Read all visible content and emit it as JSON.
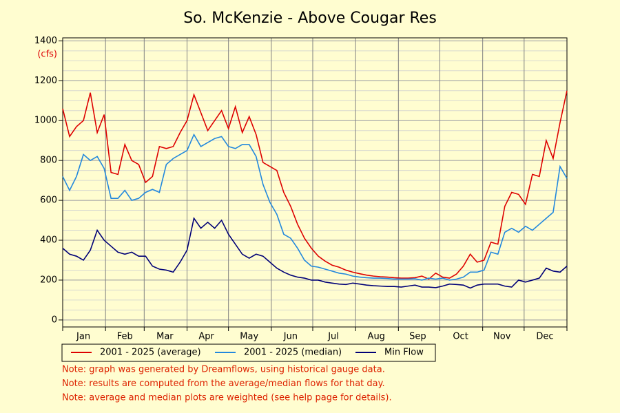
{
  "chart_data": {
    "type": "line",
    "title": "So. McKenzie - Above Cougar Res",
    "y_label": "(cfs)",
    "x": [
      1,
      6,
      11,
      16,
      21,
      26,
      31,
      36,
      41,
      46,
      51,
      56,
      61,
      66,
      71,
      76,
      81,
      86,
      91,
      96,
      101,
      106,
      111,
      116,
      121,
      126,
      131,
      136,
      141,
      146,
      151,
      156,
      161,
      166,
      171,
      176,
      181,
      186,
      191,
      196,
      201,
      206,
      211,
      216,
      221,
      226,
      231,
      236,
      241,
      246,
      251,
      256,
      261,
      266,
      271,
      276,
      281,
      286,
      291,
      296,
      301,
      306,
      311,
      316,
      321,
      326,
      331,
      336,
      341,
      346,
      351,
      356,
      361,
      366
    ],
    "xlim": [
      1,
      366
    ],
    "xticks": [
      {
        "value": 16,
        "label": "Jan"
      },
      {
        "value": 46,
        "label": "Feb"
      },
      {
        "value": 75,
        "label": "Mar"
      },
      {
        "value": 105,
        "label": "Apr"
      },
      {
        "value": 136,
        "label": "May"
      },
      {
        "value": 166,
        "label": "Jun"
      },
      {
        "value": 197,
        "label": "Jul"
      },
      {
        "value": 228,
        "label": "Aug"
      },
      {
        "value": 258,
        "label": "Sep"
      },
      {
        "value": 289,
        "label": "Oct"
      },
      {
        "value": 319,
        "label": "Nov"
      },
      {
        "value": 350,
        "label": "Dec"
      }
    ],
    "xgrid": [
      1,
      32,
      60,
      91,
      121,
      152,
      182,
      213,
      244,
      274,
      305,
      335,
      366
    ],
    "ylim": [
      -35,
      1415
    ],
    "yticks": [
      0,
      200,
      400,
      600,
      800,
      1000,
      1200,
      1400
    ],
    "minor_grid_step": 50,
    "grid": true,
    "series": [
      {
        "name": "2001 - 2025 (average)",
        "color": "#dd0000",
        "values": [
          1060,
          920,
          970,
          1000,
          1140,
          940,
          1030,
          740,
          730,
          880,
          800,
          780,
          690,
          720,
          870,
          860,
          870,
          940,
          1000,
          1130,
          1040,
          950,
          1000,
          1050,
          960,
          1070,
          940,
          1020,
          930,
          790,
          770,
          750,
          640,
          570,
          480,
          410,
          360,
          320,
          295,
          275,
          265,
          250,
          240,
          232,
          225,
          220,
          217,
          215,
          212,
          210,
          210,
          212,
          220,
          205,
          235,
          215,
          210,
          230,
          270,
          330,
          290,
          300,
          390,
          380,
          570,
          640,
          630,
          580,
          730,
          720,
          900,
          810,
          990,
          1150
        ]
      },
      {
        "name": "2001 - 2025 (median)",
        "color": "#2288dd",
        "values": [
          720,
          650,
          720,
          830,
          800,
          820,
          760,
          610,
          610,
          650,
          600,
          610,
          640,
          655,
          640,
          780,
          810,
          830,
          850,
          930,
          870,
          890,
          910,
          920,
          870,
          860,
          880,
          880,
          820,
          680,
          590,
          530,
          430,
          410,
          360,
          300,
          270,
          265,
          255,
          245,
          235,
          230,
          220,
          215,
          212,
          210,
          210,
          208,
          205,
          205,
          205,
          207,
          200,
          210,
          205,
          210,
          200,
          205,
          215,
          240,
          240,
          250,
          340,
          330,
          440,
          460,
          440,
          470,
          450,
          480,
          510,
          540,
          770,
          710
        ]
      },
      {
        "name": "Min Flow",
        "color": "#000077",
        "values": [
          360,
          330,
          320,
          300,
          350,
          450,
          400,
          370,
          340,
          330,
          340,
          320,
          320,
          270,
          255,
          250,
          240,
          290,
          350,
          510,
          460,
          490,
          460,
          500,
          430,
          380,
          330,
          310,
          330,
          320,
          290,
          260,
          240,
          225,
          215,
          210,
          200,
          200,
          190,
          185,
          180,
          178,
          185,
          180,
          175,
          172,
          170,
          168,
          168,
          165,
          170,
          175,
          165,
          165,
          162,
          170,
          180,
          178,
          175,
          160,
          175,
          180,
          180,
          180,
          170,
          165,
          200,
          190,
          200,
          210,
          260,
          245,
          240,
          270
        ]
      }
    ],
    "notes": [
      "Note: graph was generated by Dreamflows, using historical gauge data.",
      "Note: results are computed from the average/median flows for that day.",
      "Note: average and median plots are weighted (see help page for details)."
    ]
  }
}
